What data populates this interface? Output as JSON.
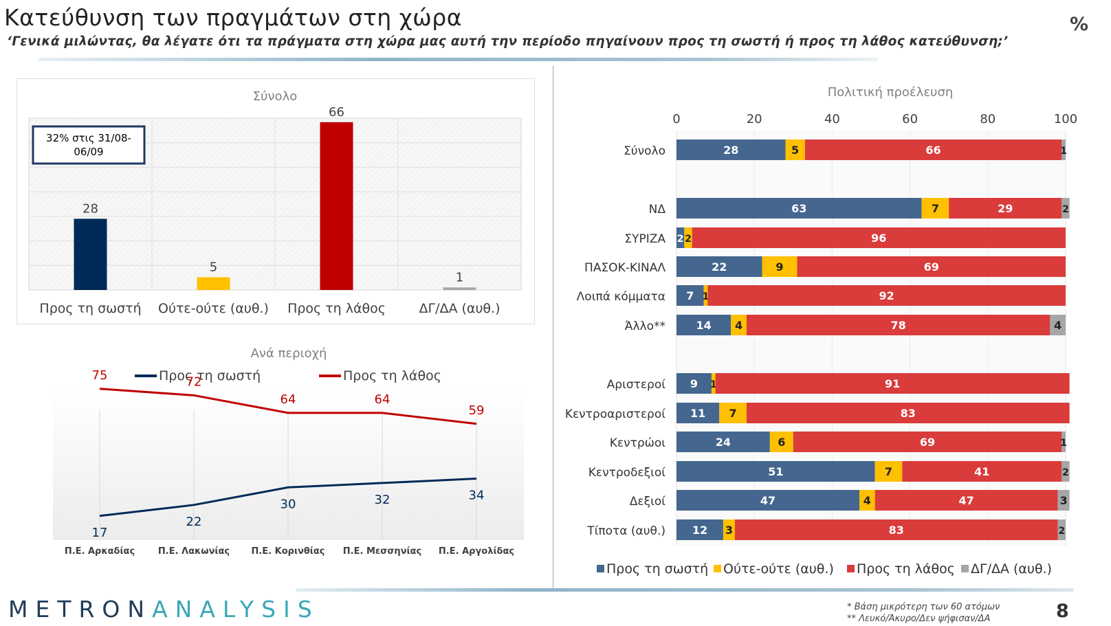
{
  "page": {
    "title": "Κατεύθυνση των πραγμάτων στη χώρα",
    "subtitle": "‘Γενικά μιλώντας, θα λέγατε ότι τα πράγματα στη χώρα μας αυτή την περίοδο πηγαίνουν προς τη σωστή ή προς τη λάθος κατεύθυνση;’",
    "percent_sign": "%",
    "page_number": "8",
    "logo_left": "METRON",
    "logo_accent": "ANALYSIS",
    "footnote_1": "*  Βάση μικρότερη των 60 ατόμων",
    "footnote_2": "** Λευκό/Άκυρο/Δεν ψήφισαν/ΔΑ"
  },
  "colors": {
    "right_dark": "#002a57",
    "right_stack": "#44668f",
    "neither": "#ffc000",
    "wrong_dark": "#c00000",
    "wrong_stack": "#da3b3b",
    "dk": "#a6a6a6"
  },
  "chart_data": [
    {
      "type": "bar",
      "title": "Σύνολο",
      "annotation": "32% στις 31/08-06/09",
      "categories": [
        "Προς τη σωστή",
        "Ούτε-ούτε (αυθ.)",
        "Προς τη λάθος",
        "ΔΓ/ΔΑ (αυθ.)"
      ],
      "values": [
        28,
        5,
        66,
        1
      ],
      "ylim": [
        0,
        70
      ],
      "grid": true
    },
    {
      "type": "line",
      "title": "Ανά περιοχή",
      "categories": [
        "Π.Ε. Αρκαδίας",
        "Π.Ε. Λακωνίας",
        "Π.Ε. Κορινθίας",
        "Π.Ε. Μεσσηνίας",
        "Π.Ε. Αργολίδας"
      ],
      "series": [
        {
          "name": "Προς τη σωστή",
          "values": [
            17,
            22,
            30,
            32,
            34
          ]
        },
        {
          "name": "Προς τη λάθος",
          "values": [
            75,
            72,
            64,
            64,
            59
          ]
        }
      ],
      "legend": "top",
      "ylim": [
        0,
        80
      ]
    },
    {
      "type": "bar",
      "orientation": "horizontal-stacked",
      "title": "Πολιτική προέλευση",
      "xlim": [
        0,
        100
      ],
      "xticks": [
        "0",
        "20",
        "40",
        "60",
        "80",
        "100"
      ],
      "legend": "bottom",
      "series_names": [
        "Προς τη σωστή",
        "Ούτε-ούτε (αυθ.)",
        "Προς τη λάθος",
        "ΔΓ/ΔΑ (αυθ.)"
      ],
      "rows": [
        {
          "label": "Σύνολο",
          "values": [
            28,
            5,
            66,
            1
          ]
        },
        {
          "label": "ΝΔ",
          "values": [
            63,
            7,
            29,
            2
          ]
        },
        {
          "label": "ΣΥΡΙΖΑ",
          "values": [
            2,
            2,
            96,
            0
          ]
        },
        {
          "label": "ΠΑΣΟΚ-ΚΙΝΑΛ",
          "values": [
            22,
            9,
            69,
            0
          ]
        },
        {
          "label": "Λοιπά κόμματα",
          "values": [
            7,
            1,
            92,
            0
          ]
        },
        {
          "label": "Άλλο**",
          "values": [
            14,
            4,
            78,
            4
          ]
        },
        {
          "label": "Αριστεροί",
          "values": [
            9,
            1,
            91,
            0
          ]
        },
        {
          "label": "Κεντροαριστεροί",
          "values": [
            11,
            7,
            83,
            0
          ]
        },
        {
          "label": "Κεντρώοι",
          "values": [
            24,
            6,
            69,
            1
          ]
        },
        {
          "label": "Κεντροδεξιοί",
          "values": [
            51,
            7,
            41,
            2
          ]
        },
        {
          "label": "Δεξιοί",
          "values": [
            47,
            4,
            47,
            3
          ]
        },
        {
          "label": "Τίποτα (αυθ.)",
          "values": [
            12,
            3,
            83,
            2
          ]
        }
      ]
    }
  ]
}
